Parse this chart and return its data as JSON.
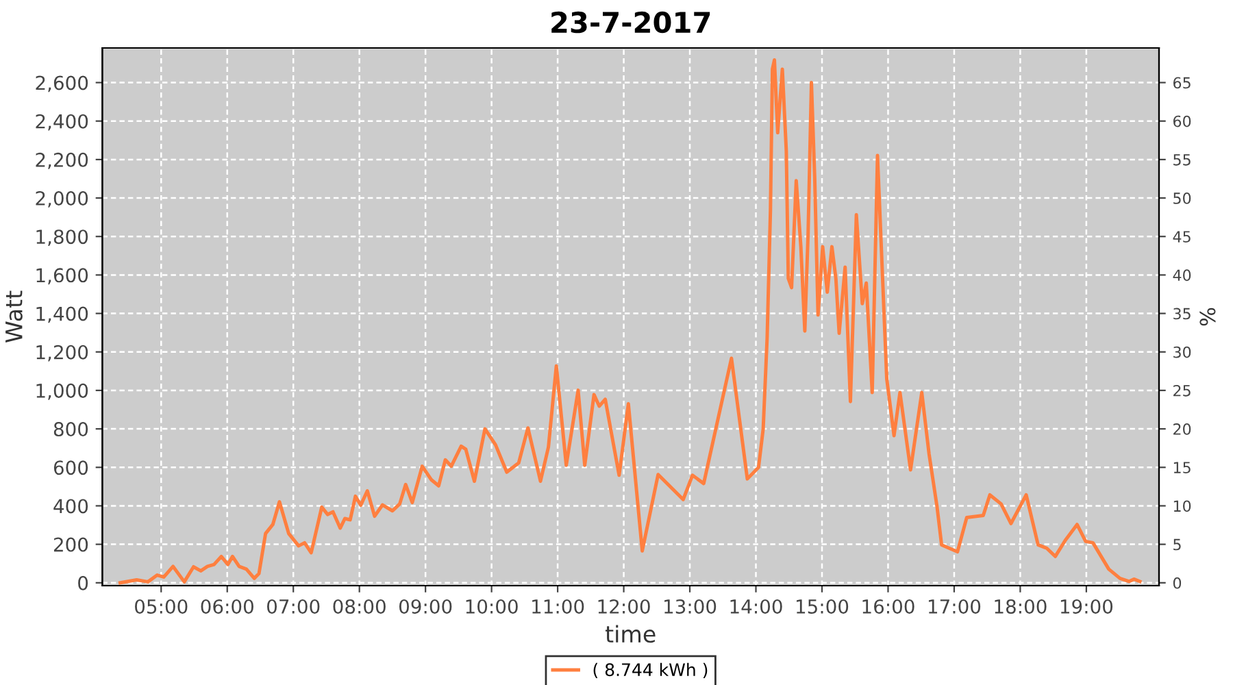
{
  "chart_data": {
    "type": "line",
    "title": "23-7-2017",
    "xlabel": "time",
    "ylabel": "Watt",
    "y2label": "%",
    "xlim": [
      4.11,
      20.1
    ],
    "xticks": [
      {
        "value": 5,
        "label": "05:00"
      },
      {
        "value": 6,
        "label": "06:00"
      },
      {
        "value": 7,
        "label": "07:00"
      },
      {
        "value": 8,
        "label": "08:00"
      },
      {
        "value": 9,
        "label": "09:00"
      },
      {
        "value": 10,
        "label": "10:00"
      },
      {
        "value": 11,
        "label": "11:00"
      },
      {
        "value": 12,
        "label": "12:00"
      },
      {
        "value": 13,
        "label": "13:00"
      },
      {
        "value": 14,
        "label": "14:00"
      },
      {
        "value": 15,
        "label": "15:00"
      },
      {
        "value": 16,
        "label": "16:00"
      },
      {
        "value": 17,
        "label": "17:00"
      },
      {
        "value": 18,
        "label": "18:00"
      },
      {
        "value": 19,
        "label": "19:00"
      }
    ],
    "ylim": [
      -15,
      2780
    ],
    "yticks": [
      0,
      200,
      400,
      600,
      800,
      {
        "value": 1000,
        "label": "1,000"
      },
      {
        "value": 1200,
        "label": "1,200"
      },
      {
        "value": 1400,
        "label": "1,400"
      },
      {
        "value": 1600,
        "label": "1,600"
      },
      {
        "value": 1800,
        "label": "1,800"
      },
      {
        "value": 2000,
        "label": "2,000"
      },
      {
        "value": 2200,
        "label": "2,200"
      },
      {
        "value": 2400,
        "label": "2,400"
      },
      {
        "value": 2600,
        "label": "2,600"
      }
    ],
    "y2lim": [
      -0.375,
      69.5
    ],
    "y2ticks": [
      0,
      5,
      10,
      15,
      20,
      25,
      30,
      35,
      40,
      45,
      50,
      55,
      60,
      65
    ],
    "grid": true,
    "legend": "bottom",
    "marker": "none",
    "line_style": "solid",
    "series": [
      {
        "name": "( 8.744 kWh )",
        "color": "#ff7f3f",
        "x": [
          4.38,
          4.63,
          4.8,
          4.94,
          5.04,
          5.18,
          5.35,
          5.49,
          5.6,
          5.7,
          5.8,
          5.91,
          6.01,
          6.08,
          6.18,
          6.29,
          6.41,
          6.48,
          6.58,
          6.69,
          6.79,
          6.93,
          7.08,
          7.17,
          7.27,
          7.43,
          7.52,
          7.6,
          7.71,
          7.78,
          7.86,
          7.94,
          8.02,
          8.12,
          8.23,
          8.35,
          8.5,
          8.61,
          8.7,
          8.8,
          8.95,
          9.09,
          9.2,
          9.3,
          9.39,
          9.54,
          9.61,
          9.74,
          9.9,
          10.06,
          10.23,
          10.41,
          10.55,
          10.74,
          10.86,
          10.98,
          11.13,
          11.31,
          11.41,
          11.55,
          11.63,
          11.72,
          11.93,
          12.07,
          12.28,
          12.52,
          12.9,
          13.04,
          13.21,
          13.63,
          13.87,
          14.04,
          14.11,
          14.17,
          14.22,
          14.25,
          14.28,
          14.33,
          14.4,
          14.46,
          14.49,
          14.54,
          14.61,
          14.68,
          14.74,
          14.79,
          14.84,
          14.89,
          14.94,
          15.01,
          15.08,
          15.15,
          15.21,
          15.26,
          15.35,
          15.43,
          15.52,
          15.61,
          15.67,
          15.76,
          15.84,
          15.98,
          16.09,
          16.18,
          16.34,
          16.51,
          16.62,
          16.74,
          16.81,
          17.05,
          17.19,
          17.44,
          17.54,
          17.71,
          17.86,
          18.09,
          18.27,
          18.4,
          18.53,
          18.68,
          18.86,
          18.99,
          19.1,
          19.34,
          19.51,
          19.65,
          19.72,
          19.81
        ],
        "values": [
          0,
          15,
          5,
          40,
          30,
          85,
          5,
          83,
          62,
          85,
          95,
          137,
          95,
          137,
          85,
          71,
          23,
          48,
          256,
          303,
          421,
          256,
          192,
          208,
          156,
          393,
          355,
          369,
          284,
          334,
          327,
          450,
          403,
          478,
          346,
          405,
          374,
          410,
          511,
          417,
          606,
          535,
          504,
          639,
          606,
          710,
          694,
          528,
          800,
          717,
          575,
          623,
          805,
          528,
          705,
          1127,
          611,
          1001,
          611,
          978,
          918,
          954,
          559,
          930,
          166,
          563,
          433,
          559,
          516,
          1167,
          540,
          600,
          800,
          1273,
          1936,
          2670,
          2718,
          2339,
          2670,
          2244,
          1582,
          1534,
          2090,
          1747,
          1309,
          1818,
          2600,
          2102,
          1392,
          1747,
          1511,
          1747,
          1582,
          1297,
          1641,
          942,
          1913,
          1451,
          1558,
          989,
          2221,
          1060,
          765,
          989,
          587,
          989,
          670,
          398,
          197,
          161,
          339,
          350,
          457,
          410,
          308,
          457,
          197,
          180,
          137,
          220,
          303,
          215,
          208,
          71,
          23,
          7,
          19,
          7
        ]
      }
    ]
  }
}
